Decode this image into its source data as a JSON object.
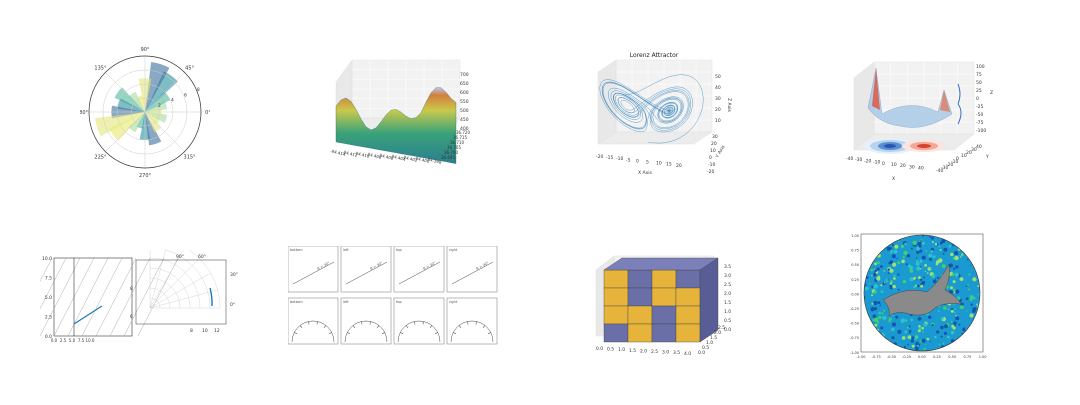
{
  "gallery": {
    "polar_bar": {
      "angle_labels": [
        "90°",
        "45°",
        "0°",
        "315°",
        "270°",
        "225°",
        "180°",
        "135°"
      ],
      "radial_labels": [
        "2",
        "4",
        "6",
        "8"
      ]
    },
    "surface3d": {
      "z_ticks": [
        "700",
        "650",
        "600",
        "550",
        "500",
        "450",
        "400"
      ],
      "y_ticks": [
        "36.720",
        "36.715",
        "36.710",
        "36.705",
        "36.700",
        "36.695"
      ],
      "x_ticks": [
        "-84.414",
        "-84.412",
        "-84.410",
        "-84.408",
        "-84.406",
        "-84.404",
        "-84.402",
        "-84.400",
        "-84.398"
      ]
    },
    "lorenz": {
      "title": "Lorenz Attractor",
      "xlabel": "X Axis",
      "ylabel": "Y Axis",
      "zlabel": "Z Axis",
      "x_ticks": [
        "-20",
        "-15",
        "-10",
        "-5",
        "0",
        "5",
        "10",
        "15",
        "20"
      ],
      "y_ticks": [
        "30",
        "20",
        "10",
        "0",
        "-10",
        "-20"
      ],
      "z_ticks": [
        "50",
        "40",
        "30",
        "20",
        "10"
      ]
    },
    "contour3d": {
      "z_ticks": [
        "100",
        "75",
        "50",
        "25",
        "0",
        "-25",
        "-50",
        "-75",
        "-100"
      ],
      "x_ticks": [
        "-40",
        "-30",
        "-20",
        "-10",
        "0",
        "10",
        "20",
        "30",
        "40"
      ],
      "y_ticks": [
        "-40",
        "-30",
        "-20",
        "-10",
        "0",
        "10",
        "20",
        "30",
        "40"
      ],
      "xlabel": "X",
      "ylabel": "Y",
      "zlabel": "Z"
    },
    "skewed_axes": {
      "y_ticks": [
        "10.0",
        "7.5",
        "5.0",
        "2.5",
        "0.0"
      ],
      "x_ticks": [
        "0.0",
        "2.5",
        "5.0",
        "7.5",
        "10.0",
        "12.5"
      ],
      "polar_angle_labels": [
        "90°",
        "60°",
        "30°",
        "0°"
      ],
      "polar_r_ticks": [
        "8",
        "10",
        "12"
      ],
      "polar_side_ticks": [
        "8",
        "6"
      ]
    },
    "text_rotation": {
      "panel_labels": [
        "bottom",
        "left",
        "top",
        "right",
        "bottom",
        "left",
        "top",
        "right"
      ],
      "annotation": "θ = 30°"
    },
    "voxels": {
      "z_ticks": [
        "3.5",
        "3.0",
        "2.5",
        "2.0",
        "1.5",
        "1.0",
        "0.5",
        "0.0"
      ],
      "x_ticks": [
        "0.0",
        "0.5",
        "1.0",
        "1.5",
        "2.0",
        "2.5",
        "3.0",
        "3.5",
        "4.0"
      ],
      "y_ticks": [
        "0.0",
        "0.5",
        "1.0",
        "1.5",
        "2.0",
        "2.5"
      ]
    },
    "clip_image": {
      "y_ticks": [
        "1.00",
        "0.75",
        "0.50",
        "0.25",
        "0.00",
        "-0.25",
        "-0.50",
        "-0.75",
        "-1.00"
      ],
      "x_ticks": [
        "-1.00",
        "-0.75",
        "-0.50",
        "-0.25",
        "0.00",
        "0.25",
        "0.50",
        "0.75",
        "1.00"
      ]
    }
  },
  "chart_data": [
    {
      "type": "bar",
      "projection": "polar",
      "title": "",
      "angle_labels": [
        "0°",
        "45°",
        "90°",
        "135°",
        "180°",
        "225°",
        "270°",
        "315°"
      ],
      "rlim": [
        0,
        10
      ],
      "grid": true,
      "theta_deg": [
        0,
        18,
        36,
        54,
        72,
        90,
        108,
        126,
        144,
        162,
        180,
        198,
        216,
        234,
        252,
        270,
        288,
        306,
        324,
        342
      ],
      "radius": [
        3,
        4,
        5,
        8,
        9,
        6,
        3,
        4,
        6,
        5,
        6,
        9,
        7,
        4,
        3,
        5,
        6,
        4,
        3,
        4
      ]
    },
    {
      "type": "surface3d",
      "title": "",
      "zlim": [
        400,
        700
      ],
      "xlim": [
        -84.415,
        -84.397
      ],
      "ylim": [
        36.695,
        36.72
      ]
    },
    {
      "type": "line3d",
      "title": "Lorenz Attractor",
      "xlabel": "X Axis",
      "ylabel": "Y Axis",
      "zlabel": "Z Axis",
      "xlim": [
        -20,
        20
      ],
      "ylim": [
        -25,
        30
      ],
      "zlim": [
        0,
        50
      ]
    },
    {
      "type": "surface3d",
      "title": "",
      "xlim": [
        -40,
        40
      ],
      "ylim": [
        -40,
        40
      ],
      "zlim": [
        -100,
        100
      ],
      "xlabel": "X",
      "ylabel": "Y",
      "zlabel": "Z"
    },
    {
      "type": "line",
      "title": "",
      "xlim": [
        0,
        12.5
      ],
      "ylim": [
        0,
        10
      ],
      "grid": true
    },
    {
      "type": "scatter",
      "title": "",
      "annotation": "θ = 30°"
    },
    {
      "type": "voxel",
      "title": "",
      "xlim": [
        0,
        4
      ],
      "ylim": [
        0,
        2.5
      ],
      "zlim": [
        0,
        3.5
      ]
    },
    {
      "type": "heatmap",
      "title": "",
      "xlim": [
        -1,
        1
      ],
      "ylim": [
        -1,
        1
      ]
    }
  ]
}
